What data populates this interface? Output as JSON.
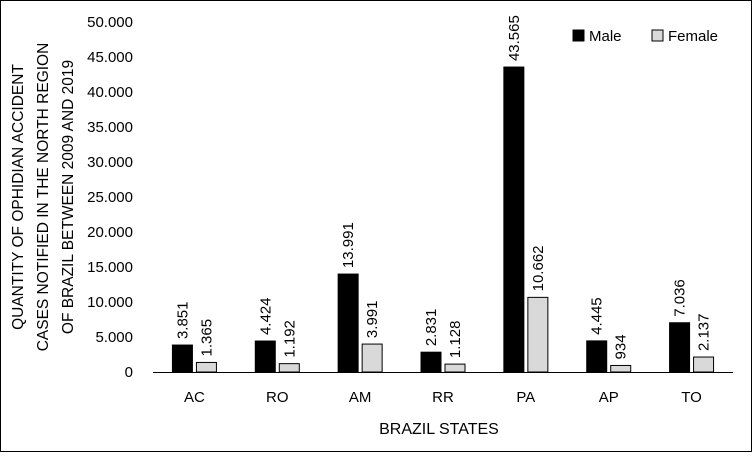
{
  "chart_data": {
    "type": "bar",
    "title": "",
    "xlabel": "BRAZIL STATES",
    "ylabel_lines": [
      "QUANTITY OF OPHIDIAN ACCIDENT",
      "CASES NOTIFIED IN THE NORTH REGION",
      "OF BRAZIL BETWEEN 2009 AND 2019"
    ],
    "categories": [
      "AC",
      "RO",
      "AM",
      "RR",
      "PA",
      "AP",
      "TO"
    ],
    "ylim": [
      0,
      50000
    ],
    "yticks": [
      0,
      5000,
      10000,
      15000,
      20000,
      25000,
      30000,
      35000,
      40000,
      45000,
      50000
    ],
    "ytick_labels": [
      "0",
      "5.000",
      "10.000",
      "15.000",
      "20.000",
      "25.000",
      "30.000",
      "35.000",
      "40.000",
      "45.000",
      "50.000"
    ],
    "grid": false,
    "legend_position": "top-right",
    "series": [
      {
        "name": "Male",
        "color": "#000000",
        "values": [
          3851,
          4424,
          13991,
          2831,
          43565,
          4445,
          7036
        ],
        "labels": [
          "3.851",
          "4.424",
          "13.991",
          "2.831",
          "43.565",
          "4.445",
          "7.036"
        ]
      },
      {
        "name": "Female",
        "color": "#d9d9d9",
        "values": [
          1365,
          1192,
          3991,
          1128,
          10662,
          934,
          2137
        ],
        "labels": [
          "1.365",
          "1.192",
          "3.991",
          "1.128",
          "10.662",
          "934",
          "2.137"
        ]
      }
    ]
  }
}
